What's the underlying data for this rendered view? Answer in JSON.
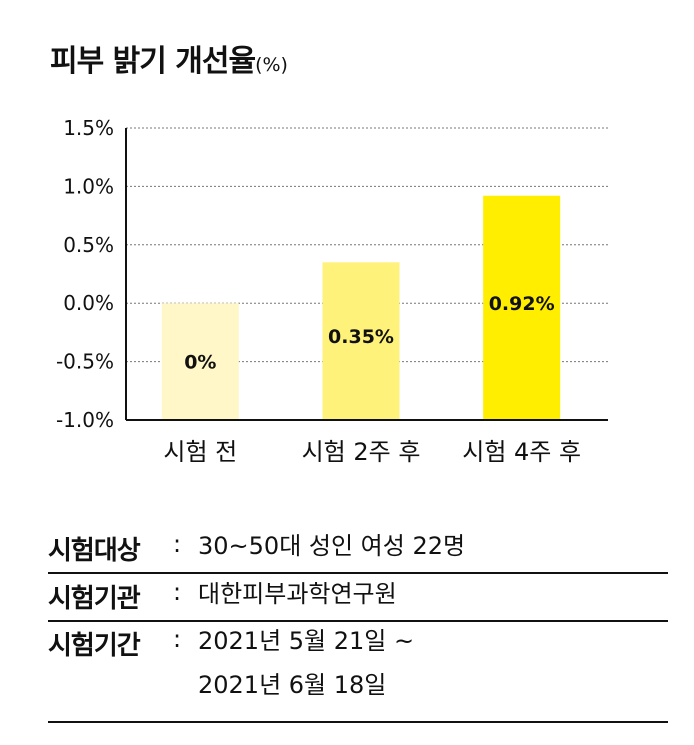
{
  "title": {
    "main": "피부 밝기 개선율",
    "unit": "(%)"
  },
  "chart_data": {
    "type": "bar",
    "categories": [
      "시험 전",
      "시험 2주 후",
      "시험 4주 후"
    ],
    "values": [
      0,
      0.35,
      0.92
    ],
    "data_labels": [
      "0%",
      "0.35%",
      "0.92%"
    ],
    "ylim": [
      -1.0,
      1.5
    ],
    "yticks": [
      1.5,
      1.0,
      0.5,
      0.0,
      -0.5,
      -1.0
    ],
    "ytick_labels": [
      "1.5%",
      "1.0%",
      "0.5%",
      "0.0%",
      "-0.5%",
      "-1.0%"
    ],
    "grid": "horizontal dotted",
    "bar_colors": [
      "#FFF7C8",
      "#FFF27A",
      "#FFEE00"
    ]
  },
  "info": {
    "subject": {
      "key": "시험대상",
      "sep": ":",
      "value": "30~50대 성인 여성 22명"
    },
    "institution": {
      "key": "시험기관",
      "sep": ":",
      "value": "대한피부과학연구원"
    },
    "period": {
      "key": "시험기간",
      "sep": ":",
      "value_line1": "2021년 5월 21일 ~",
      "value_line2": "2021년 6월 18일"
    }
  }
}
